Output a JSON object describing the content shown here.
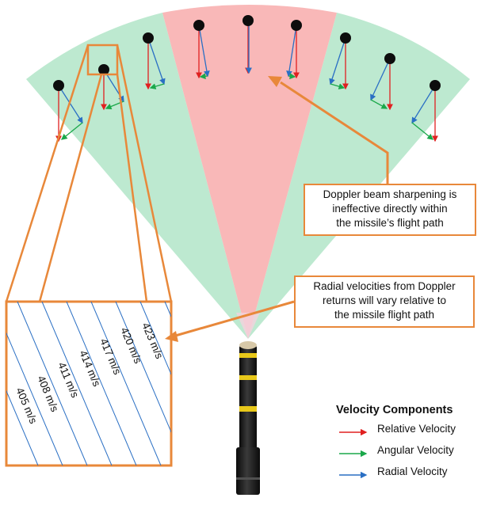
{
  "callouts": {
    "doppler_sharpening": [
      "Doppler beam sharpening is",
      "ineffective directly within",
      "the missile’s flight path"
    ],
    "radial_velocities": [
      "Radial velocities from Doppler",
      "returns will vary relative to",
      "the missile flight path"
    ]
  },
  "inset": {
    "velocity_labels": [
      "405 m/s",
      "408 m/s",
      "411 m/s",
      "414 m/s",
      "417 m/s",
      "420 m/s",
      "423 m/s"
    ]
  },
  "legend": {
    "title": "Velocity Components",
    "items": [
      {
        "label": "Relative Velocity",
        "color": "#e02020"
      },
      {
        "label": "Angular Velocity",
        "color": "#1aa84a"
      },
      {
        "label": "Radial Velocity",
        "color": "#2a6fc4"
      }
    ]
  },
  "colors": {
    "side_sectors": "#bde9d0",
    "center_sector": "#f9b8b8",
    "callout_border": "#e8883a",
    "contour_lines": "#2a6fc4",
    "missile_band": "#e8c81a"
  }
}
